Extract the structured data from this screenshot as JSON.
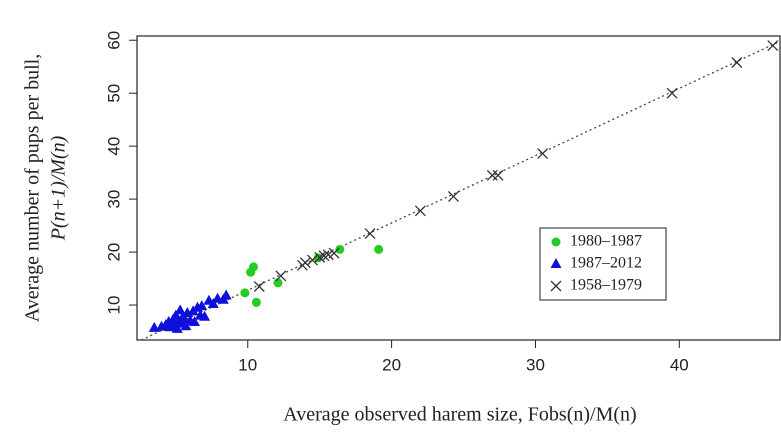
{
  "chart_data": {
    "type": "scatter",
    "xlabel": "Average observed harem size, Fobs(n)/M(n)",
    "ylabel": [
      "Average number of pups per bull,",
      "P(n+1)/M(n)"
    ],
    "xlim": [
      2.3,
      47
    ],
    "ylim": [
      3.4,
      60.8
    ],
    "xticks": [
      10,
      20,
      30,
      40
    ],
    "yticks": [
      10,
      20,
      30,
      40,
      50,
      60
    ],
    "fit_line": {
      "x": [
        2.6,
        47
      ],
      "y": [
        3.4,
        59.8
      ],
      "color": "#444"
    },
    "legend": "right",
    "series": [
      {
        "name": "1980–1987",
        "color": "#22cc22",
        "marker": "circle",
        "x": [
          9.8,
          10.2,
          10.4,
          10.6,
          12.1,
          14.9,
          16.4,
          19.1
        ],
        "y": [
          12.3,
          16.2,
          17.2,
          10.5,
          14.2,
          18.9,
          20.5,
          20.5
        ]
      },
      {
        "name": "1987–2012",
        "color": "#1010dd",
        "marker": "triangle",
        "x": [
          3.5,
          4.0,
          4.3,
          4.5,
          4.6,
          4.8,
          4.9,
          5.0,
          5.1,
          5.2,
          5.3,
          5.4,
          5.5,
          5.7,
          5.8,
          6.0,
          6.2,
          6.3,
          6.5,
          6.7,
          7.0,
          7.3,
          7.6,
          7.9,
          8.3,
          8.5,
          6.8,
          5.6
        ],
        "y": [
          5.7,
          5.9,
          6.2,
          6.8,
          5.8,
          7.2,
          6.3,
          8.0,
          5.5,
          7.0,
          9.0,
          6.5,
          7.8,
          6.0,
          8.5,
          7.0,
          8.8,
          6.8,
          9.5,
          8.0,
          7.8,
          10.8,
          10.2,
          11.2,
          11.0,
          11.8,
          9.8,
          7.3
        ]
      },
      {
        "name": "1958–1979",
        "color": "#333333",
        "marker": "cross",
        "x": [
          10.8,
          12.3,
          13.8,
          14.0,
          14.5,
          15.0,
          15.3,
          15.6,
          16.0,
          18.5,
          22.0,
          24.3,
          27.0,
          27.4,
          30.5,
          39.5,
          44.0,
          46.5
        ],
        "y": [
          13.5,
          15.5,
          17.5,
          18.0,
          18.5,
          19.0,
          19.3,
          19.5,
          19.8,
          23.5,
          27.8,
          30.5,
          34.5,
          34.5,
          38.6,
          50.0,
          55.8,
          59.0
        ]
      }
    ]
  }
}
